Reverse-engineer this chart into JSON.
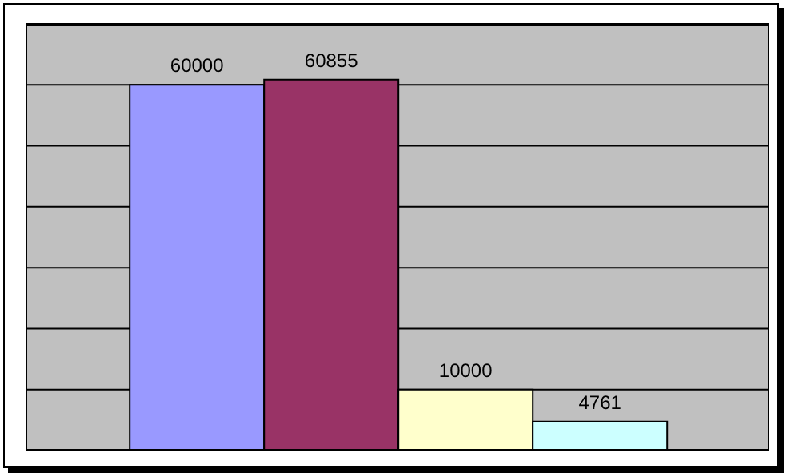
{
  "chart_data": {
    "type": "bar",
    "categories": [
      null
    ],
    "series": [
      {
        "color": "#9999ff",
        "values": [
          60000
        ]
      },
      {
        "color": "#993366",
        "values": [
          60855
        ]
      },
      {
        "color": "#ffffcc",
        "values": [
          10000
        ]
      },
      {
        "color": "#ccffff",
        "values": [
          4761
        ]
      }
    ],
    "ylim": [
      0,
      70000
    ],
    "yticks": [
      {
        "value": 0,
        "label": null
      },
      {
        "value": 10000,
        "label": null
      },
      {
        "value": 20000,
        "label": null
      },
      {
        "value": 30000,
        "label": null
      },
      {
        "value": 40000,
        "label": null
      },
      {
        "value": 50000,
        "label": null
      },
      {
        "value": 60000,
        "label": null
      },
      {
        "value": 70000,
        "label": null
      }
    ],
    "grid": "y",
    "tick_labels": false,
    "data_labels": true,
    "legend": false
  }
}
